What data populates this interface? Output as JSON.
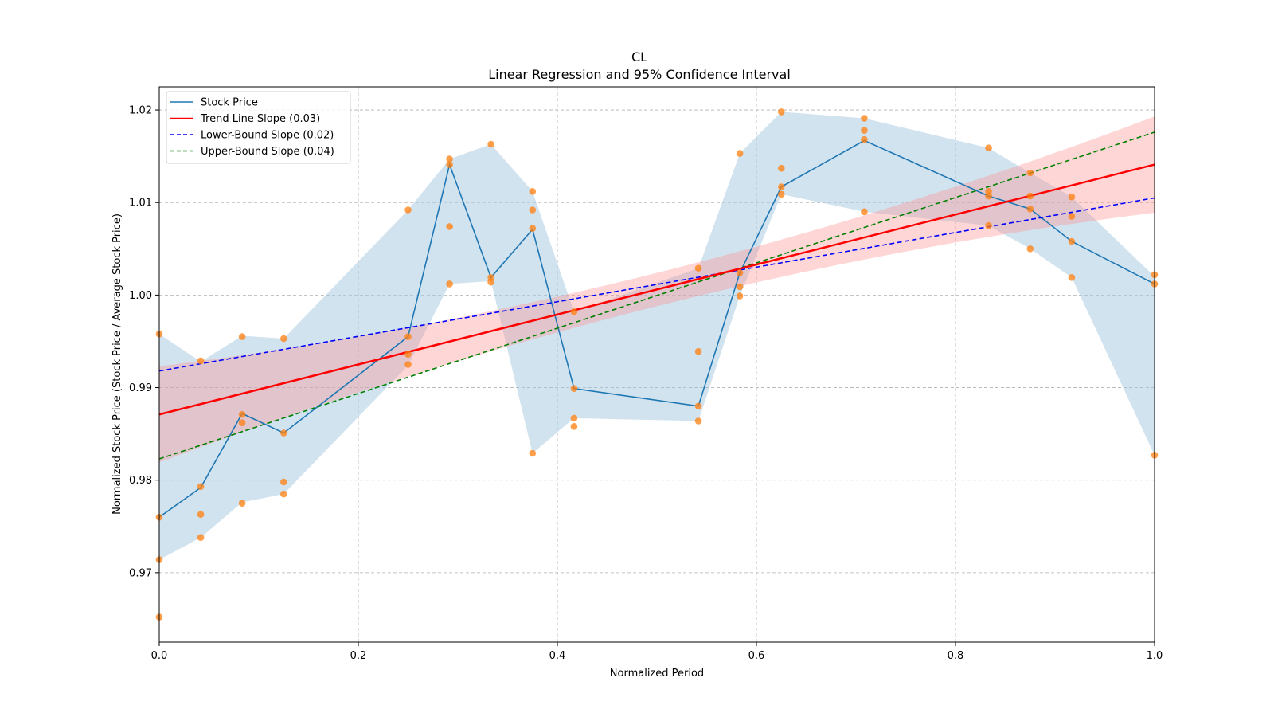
{
  "chart_data": {
    "type": "line",
    "title": "CL",
    "subtitle": "Linear Regression and 95% Confidence Interval",
    "xlabel": "Normalized Period",
    "ylabel": "Normalized Stock Price (Stock Price / Average Stock Price)",
    "xlim": [
      0.0,
      1.0
    ],
    "ylim": [
      0.9625,
      1.0225
    ],
    "xticks": [
      "0.0",
      "0.2",
      "0.4",
      "0.6",
      "0.8",
      "1.0"
    ],
    "yticks": [
      "0.97",
      "0.98",
      "0.99",
      "1.00",
      "1.01",
      "1.02"
    ],
    "grid": true,
    "legend_position": "top-left",
    "colors": {
      "stock": "#1f77b4",
      "band": "#a6c8e1",
      "trend": "#ff0000",
      "trend_band": "#ff8a8a",
      "lower": "#0000ff",
      "upper": "#008000",
      "points": "#ff7f0e"
    },
    "legend": [
      {
        "label": "Stock Price",
        "style": "solid",
        "color": "#1f77b4"
      },
      {
        "label": "Trend Line Slope (0.03)",
        "style": "solid",
        "color": "#ff0000"
      },
      {
        "label": "Lower-Bound Slope (0.02)",
        "style": "dashed",
        "color": "#0000ff"
      },
      {
        "label": "Upper-Bound Slope (0.04)",
        "style": "dashed",
        "color": "#008000"
      }
    ],
    "stock_series": {
      "name": "Stock Price",
      "x": [
        0.0,
        0.0417,
        0.0833,
        0.125,
        0.25,
        0.2917,
        0.3333,
        0.375,
        0.4167,
        0.5417,
        0.5833,
        0.625,
        0.7083,
        0.8333,
        0.875,
        0.9167,
        1.0
      ],
      "y": [
        0.976,
        0.9792,
        0.9872,
        0.9851,
        0.9955,
        1.0141,
        1.0019,
        1.0071,
        0.9899,
        0.988,
        1.0024,
        1.0117,
        1.0167,
        1.0107,
        1.0093,
        1.0058,
        1.0012
      ]
    },
    "stock_band": {
      "upper": [
        0.9958,
        0.9928,
        0.9956,
        0.9953,
        1.0092,
        1.0147,
        1.0163,
        1.0112,
        0.9982,
        1.0029,
        1.0153,
        1.0198,
        1.0191,
        1.0159,
        1.0132,
        1.0106,
        1.002
      ],
      "lower": [
        0.9714,
        0.9738,
        0.9776,
        0.9785,
        0.9924,
        1.0012,
        1.0015,
        0.9829,
        0.9867,
        0.9864,
        0.9999,
        1.0109,
        1.009,
        1.0075,
        1.005,
        1.0019,
        0.9827
      ]
    },
    "trend_line": {
      "name": "Trend Line Slope (0.03)",
      "intercept": 0.9871,
      "slope": 0.027,
      "band_halfwidth_ends": 0.0052,
      "band_halfwidth_mid": 0.0018
    },
    "lower_bound_line": {
      "name": "Lower-Bound Slope (0.02)",
      "intercept": 0.9918,
      "slope": 0.0187
    },
    "upper_bound_line": {
      "name": "Upper-Bound Slope (0.04)",
      "intercept": 0.9823,
      "slope": 0.0353
    },
    "scatter_points": [
      [
        0.0,
        0.9958
      ],
      [
        0.0,
        0.976
      ],
      [
        0.0,
        0.9714
      ],
      [
        0.0,
        0.9652
      ],
      [
        0.0417,
        0.9929
      ],
      [
        0.0417,
        0.9793
      ],
      [
        0.0417,
        0.9763
      ],
      [
        0.0417,
        0.9738
      ],
      [
        0.0833,
        0.9955
      ],
      [
        0.0833,
        0.9871
      ],
      [
        0.0833,
        0.9862
      ],
      [
        0.0833,
        0.9775
      ],
      [
        0.125,
        0.9953
      ],
      [
        0.125,
        0.9851
      ],
      [
        0.125,
        0.9798
      ],
      [
        0.125,
        0.9785
      ],
      [
        0.25,
        1.0092
      ],
      [
        0.25,
        0.9955
      ],
      [
        0.25,
        0.9936
      ],
      [
        0.25,
        0.9925
      ],
      [
        0.2917,
        1.0147
      ],
      [
        0.2917,
        1.0141
      ],
      [
        0.2917,
        1.0074
      ],
      [
        0.2917,
        1.0012
      ],
      [
        0.3333,
        1.0163
      ],
      [
        0.3333,
        1.0019
      ],
      [
        0.3333,
        1.0014
      ],
      [
        0.375,
        1.0112
      ],
      [
        0.375,
        1.0092
      ],
      [
        0.375,
        1.0072
      ],
      [
        0.375,
        0.9829
      ],
      [
        0.4167,
        0.9982
      ],
      [
        0.4167,
        0.9899
      ],
      [
        0.4167,
        0.9867
      ],
      [
        0.4167,
        0.9858
      ],
      [
        0.5417,
        1.0029
      ],
      [
        0.5417,
        0.9939
      ],
      [
        0.5417,
        0.988
      ],
      [
        0.5417,
        0.9864
      ],
      [
        0.5833,
        1.0153
      ],
      [
        0.5833,
        1.0024
      ],
      [
        0.5833,
        1.0009
      ],
      [
        0.5833,
        0.9999
      ],
      [
        0.625,
        1.0198
      ],
      [
        0.625,
        1.0137
      ],
      [
        0.625,
        1.0117
      ],
      [
        0.625,
        1.0109
      ],
      [
        0.7083,
        1.0191
      ],
      [
        0.7083,
        1.0178
      ],
      [
        0.7083,
        1.0168
      ],
      [
        0.7083,
        1.009
      ],
      [
        0.8333,
        1.0159
      ],
      [
        0.8333,
        1.0112
      ],
      [
        0.8333,
        1.0107
      ],
      [
        0.8333,
        1.0075
      ],
      [
        0.875,
        1.0132
      ],
      [
        0.875,
        1.0107
      ],
      [
        0.875,
        1.0093
      ],
      [
        0.875,
        1.005
      ],
      [
        0.9167,
        1.0106
      ],
      [
        0.9167,
        1.0085
      ],
      [
        0.9167,
        1.0058
      ],
      [
        0.9167,
        1.0019
      ],
      [
        1.0,
        1.0022
      ],
      [
        1.0,
        1.0012
      ],
      [
        1.0,
        0.9827
      ]
    ]
  }
}
